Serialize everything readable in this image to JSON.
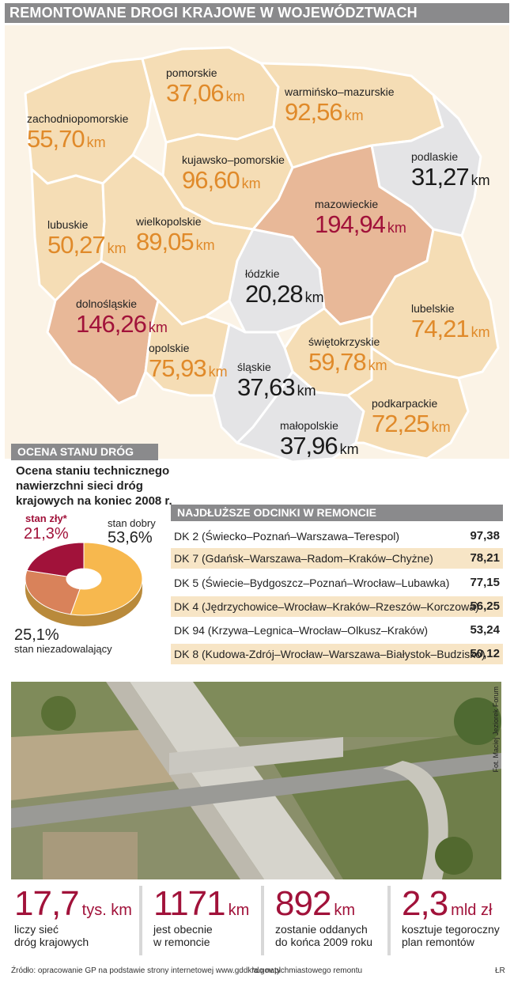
{
  "header": {
    "title": "REMONTOWANE DROGI KRAJOWE W WOJEWÓDZTWACH"
  },
  "colors": {
    "orange": "#e08a2a",
    "red": "#a1123a",
    "grey": "#8a8a8c"
  },
  "map": {
    "unit": "km",
    "regions": [
      {
        "name": "pomorskie",
        "value": "37,06"
      },
      {
        "name": "warmińsko–mazurskie",
        "value": "92,56"
      },
      {
        "name": "zachodniopomorskie",
        "value": "55,70"
      },
      {
        "name": "kujawsko–pomorskie",
        "value": "96,60"
      },
      {
        "name": "podlaskie",
        "value": "31,27"
      },
      {
        "name": "mazowieckie",
        "value": "194,94"
      },
      {
        "name": "lubuskie",
        "value": "50,27"
      },
      {
        "name": "wielkopolskie",
        "value": "89,05"
      },
      {
        "name": "łódzkie",
        "value": "20,28"
      },
      {
        "name": "dolnośląskie",
        "value": "146,26"
      },
      {
        "name": "lubelskie",
        "value": "74,21"
      },
      {
        "name": "świętokrzyskie",
        "value": "59,78"
      },
      {
        "name": "opolskie",
        "value": "75,93"
      },
      {
        "name": "śląskie",
        "value": "37,63"
      },
      {
        "name": "podkarpackie",
        "value": "72,25"
      },
      {
        "name": "małopolskie",
        "value": "37,96"
      }
    ]
  },
  "ocena": {
    "header": "OCENA STANU DRÓG",
    "title": "Ocena staniu technicznego nawierzchni sieci dróg krajowych na koniec 2008 r.",
    "bad_label": "stan zły*",
    "bad_value": "21,3%",
    "good_label": "stan dobry",
    "good_value": "53,6%",
    "mid_value": "25,1%",
    "mid_label": "stan niezadowalający"
  },
  "chart_data": {
    "type": "pie",
    "categories": [
      "stan dobry",
      "stan niezadowalający",
      "stan zły*"
    ],
    "values": [
      53.6,
      25.1,
      21.3
    ],
    "colors": [
      "#f7b84e",
      "#d9825a",
      "#a1123a"
    ]
  },
  "odcinki": {
    "header": "NAJDŁUŻSZE ODCINKI W REMONCIE",
    "rows": [
      {
        "name": "DK 2 (Świecko–Poznań–Warszawa–Terespol)",
        "value": "97,38"
      },
      {
        "name": "DK 7 (Gdańsk–Warszawa–Radom–Kraków–Chyżne)",
        "value": "78,21"
      },
      {
        "name": "DK 5 (Świecie–Bydgoszcz–Poznań–Wrocław–Lubawka)",
        "value": "77,15"
      },
      {
        "name": "DK 4 (Jędrzychowice–Wrocław–Kraków–Rzeszów–Korczowa)",
        "value": "56,25"
      },
      {
        "name": "DK 94 (Krzywa–Legnica–Wrocław–Olkusz–Kraków)",
        "value": "53,24"
      },
      {
        "name": "DK 8 (Kudowa-Zdrój–Wrocław–Warszawa–Białystok–Budzisko)",
        "value": "50,12"
      }
    ]
  },
  "photo": {
    "credit": "Fot. Maciej Jeziorek Forum"
  },
  "stats": [
    {
      "value": "17,7",
      "unit": "tys. km",
      "line1": "liczy sieć",
      "line2": "dróg krajowych"
    },
    {
      "value": "1171",
      "unit": "km",
      "line1": "jest obecnie",
      "line2": "w remoncie"
    },
    {
      "value": "892",
      "unit": "km",
      "line1": "zostanie oddanych",
      "line2": "do końca 2009 roku"
    },
    {
      "value": "2,3",
      "unit": "mld zł",
      "line1": "kosztuje tegoroczny",
      "line2": "plan remontów"
    }
  ],
  "footer": {
    "source": "Źródło: opracowanie GP na podstawie strony internetowej www.gddkia.gov.pl",
    "note": "*do natychmiastowego remontu",
    "initials": "ŁR"
  }
}
